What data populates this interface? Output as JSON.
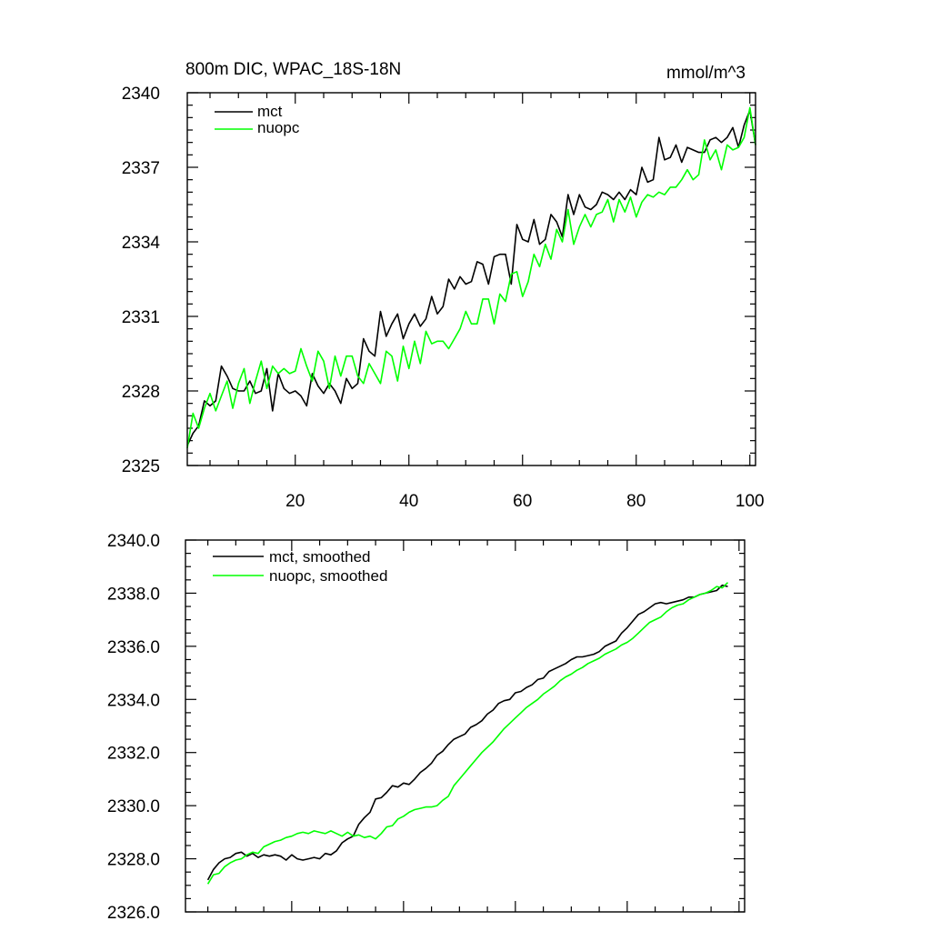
{
  "chart_data": [
    {
      "type": "line",
      "title": "800m DIC, WPAC_18S-18N",
      "units": "mmol/m^3",
      "xlabel": "",
      "ylabel": "",
      "xlim": [
        1,
        101
      ],
      "ylim": [
        2325,
        2340
      ],
      "yticks": [
        2325,
        2328,
        2331,
        2334,
        2337,
        2340
      ],
      "ytick_labels": [
        "2325",
        "2328",
        "2331",
        "2334",
        "2337",
        "2340"
      ],
      "xticks": [
        20,
        40,
        60,
        80,
        100
      ],
      "xtick_labels": [
        "20",
        "40",
        "60",
        "80",
        "100"
      ],
      "legend_position": "top-left",
      "series": [
        {
          "name": "mct",
          "color": "#000000",
          "x": [
            1,
            2,
            3,
            4,
            5,
            6,
            7,
            8,
            9,
            10,
            11,
            12,
            13,
            14,
            15,
            16,
            17,
            18,
            19,
            20,
            21,
            22,
            23,
            24,
            25,
            26,
            27,
            28,
            29,
            30,
            31,
            32,
            33,
            34,
            35,
            36,
            37,
            38,
            39,
            40,
            41,
            42,
            43,
            44,
            45,
            46,
            47,
            48,
            49,
            50,
            51,
            52,
            53,
            54,
            55,
            56,
            57,
            58,
            59,
            60,
            61,
            62,
            63,
            64,
            65,
            66,
            67,
            68,
            69,
            70,
            71,
            72,
            73,
            74,
            75,
            76,
            77,
            78,
            79,
            80,
            81,
            82,
            83,
            84,
            85,
            86,
            87,
            88,
            89,
            90,
            91,
            92,
            93,
            94,
            95,
            96,
            97,
            98,
            99,
            100,
            101
          ],
          "values": [
            2325.8,
            2326.3,
            2326.6,
            2327.6,
            2327.4,
            2327.6,
            2329.0,
            2328.6,
            2328.1,
            2328.0,
            2328.0,
            2328.4,
            2327.9,
            2328.0,
            2328.9,
            2327.2,
            2328.7,
            2328.1,
            2327.9,
            2328.0,
            2327.8,
            2327.4,
            2328.7,
            2328.2,
            2327.9,
            2328.3,
            2328.0,
            2327.5,
            2328.5,
            2328.1,
            2328.3,
            2330.1,
            2329.6,
            2329.4,
            2331.2,
            2330.2,
            2330.7,
            2331.1,
            2330.1,
            2330.7,
            2331.1,
            2330.6,
            2330.9,
            2331.8,
            2331.1,
            2331.4,
            2332.5,
            2332.1,
            2332.6,
            2332.3,
            2332.4,
            2333.2,
            2333.1,
            2332.3,
            2333.4,
            2333.5,
            2333.5,
            2332.3,
            2334.7,
            2334.1,
            2334.0,
            2334.9,
            2333.9,
            2334.1,
            2335.1,
            2334.8,
            2334.2,
            2335.9,
            2335.1,
            2335.9,
            2335.4,
            2335.3,
            2335.5,
            2336.0,
            2335.9,
            2335.7,
            2336.0,
            2335.7,
            2336.1,
            2335.9,
            2337.0,
            2336.4,
            2336.5,
            2338.2,
            2337.3,
            2337.4,
            2337.9,
            2337.2,
            2337.8,
            2337.7,
            2337.6,
            2337.6,
            2338.1,
            2338.2,
            2338.0,
            2338.2,
            2338.6,
            2337.8,
            2338.7,
            2339.3,
            2337.9
          ]
        },
        {
          "name": "nuopc",
          "color": "#00ff00",
          "x": [
            1,
            2,
            3,
            4,
            5,
            6,
            7,
            8,
            9,
            10,
            11,
            12,
            13,
            14,
            15,
            16,
            17,
            18,
            19,
            20,
            21,
            22,
            23,
            24,
            25,
            26,
            27,
            28,
            29,
            30,
            31,
            32,
            33,
            34,
            35,
            36,
            37,
            38,
            39,
            40,
            41,
            42,
            43,
            44,
            45,
            46,
            47,
            48,
            49,
            50,
            51,
            52,
            53,
            54,
            55,
            56,
            57,
            58,
            59,
            60,
            61,
            62,
            63,
            64,
            65,
            66,
            67,
            68,
            69,
            70,
            71,
            72,
            73,
            74,
            75,
            76,
            77,
            78,
            79,
            80,
            81,
            82,
            83,
            84,
            85,
            86,
            87,
            88,
            89,
            90,
            91,
            92,
            93,
            94,
            95,
            96,
            97,
            98,
            99,
            100,
            101
          ],
          "values": [
            2325.7,
            2327.1,
            2326.5,
            2327.3,
            2327.9,
            2327.2,
            2327.8,
            2328.4,
            2327.3,
            2328.3,
            2328.9,
            2327.5,
            2328.4,
            2329.2,
            2328.1,
            2329.0,
            2328.7,
            2328.9,
            2328.7,
            2328.8,
            2329.7,
            2329.0,
            2328.4,
            2329.6,
            2329.2,
            2328.1,
            2329.4,
            2328.6,
            2329.4,
            2329.4,
            2328.6,
            2328.3,
            2329.1,
            2328.7,
            2328.3,
            2329.6,
            2329.4,
            2328.4,
            2329.8,
            2328.9,
            2330.0,
            2329.1,
            2330.4,
            2329.9,
            2330.0,
            2330.0,
            2329.7,
            2330.1,
            2330.5,
            2331.2,
            2330.7,
            2330.7,
            2331.7,
            2331.7,
            2330.7,
            2331.9,
            2331.6,
            2332.7,
            2332.8,
            2331.8,
            2332.4,
            2333.5,
            2333.0,
            2333.9,
            2333.3,
            2334.5,
            2334.0,
            2335.3,
            2333.9,
            2334.6,
            2335.1,
            2334.6,
            2335.1,
            2335.2,
            2335.7,
            2334.8,
            2335.7,
            2335.2,
            2335.8,
            2335.0,
            2335.6,
            2335.9,
            2335.8,
            2336.0,
            2335.9,
            2336.2,
            2336.2,
            2336.5,
            2336.9,
            2336.5,
            2336.7,
            2338.1,
            2337.3,
            2337.7,
            2336.9,
            2337.9,
            2337.7,
            2337.8,
            2338.2,
            2339.4,
            2337.9
          ]
        }
      ]
    },
    {
      "type": "line",
      "title": "",
      "xlabel": "",
      "ylabel": "",
      "xlim": [
        1,
        101
      ],
      "ylim": [
        2326.0,
        2340.0
      ],
      "yticks": [
        2326,
        2328,
        2330,
        2332,
        2334,
        2336,
        2338,
        2340
      ],
      "ytick_labels": [
        "2326.0",
        "2328.0",
        "2330.0",
        "2332.0",
        "2334.0",
        "2336.0",
        "2338.0",
        "2340.0"
      ],
      "xticks": [
        20,
        40,
        60,
        80,
        100
      ],
      "legend_position": "top-left",
      "series": [
        {
          "name": "mct, smoothed",
          "color": "#000000",
          "x": [
            5,
            6,
            7,
            8,
            9,
            10,
            11,
            12,
            13,
            14,
            15,
            16,
            17,
            18,
            19,
            20,
            21,
            22,
            23,
            24,
            25,
            26,
            27,
            28,
            29,
            30,
            31,
            32,
            33,
            34,
            35,
            36,
            37,
            38,
            39,
            40,
            41,
            42,
            43,
            44,
            45,
            46,
            47,
            48,
            49,
            50,
            51,
            52,
            53,
            54,
            55,
            56,
            57,
            58,
            59,
            60,
            61,
            62,
            63,
            64,
            65,
            66,
            67,
            68,
            69,
            70,
            71,
            72,
            73,
            74,
            75,
            76,
            77,
            78,
            79,
            80,
            81,
            82,
            83,
            84,
            85,
            86,
            87,
            88,
            89,
            90,
            91,
            92,
            93,
            94,
            95,
            96,
            97,
            98
          ],
          "values": [
            2327.2,
            2327.6,
            2327.85,
            2328.0,
            2328.05,
            2328.2,
            2328.25,
            2328.1,
            2328.2,
            2328.05,
            2328.15,
            2328.1,
            2328.15,
            2328.1,
            2327.95,
            2328.15,
            2328.0,
            2327.95,
            2328.0,
            2328.05,
            2328.0,
            2328.2,
            2328.15,
            2328.3,
            2328.6,
            2328.75,
            2328.85,
            2329.3,
            2329.55,
            2329.75,
            2330.25,
            2330.3,
            2330.5,
            2330.75,
            2330.7,
            2330.85,
            2330.8,
            2331.0,
            2331.25,
            2331.4,
            2331.6,
            2331.9,
            2332.05,
            2332.3,
            2332.5,
            2332.6,
            2332.7,
            2332.95,
            2333.05,
            2333.2,
            2333.45,
            2333.6,
            2333.85,
            2333.95,
            2334.0,
            2334.25,
            2334.3,
            2334.45,
            2334.55,
            2334.75,
            2334.8,
            2335.05,
            2335.15,
            2335.25,
            2335.35,
            2335.5,
            2335.6,
            2335.6,
            2335.65,
            2335.7,
            2335.8,
            2336.0,
            2336.1,
            2336.2,
            2336.5,
            2336.7,
            2336.95,
            2337.2,
            2337.3,
            2337.45,
            2337.6,
            2337.65,
            2337.6,
            2337.65,
            2337.7,
            2337.75,
            2337.85,
            2337.85,
            2337.95,
            2338.0,
            2338.05,
            2338.1,
            2338.3,
            2338.25
          ]
        },
        {
          "name": "nuopc, smoothed",
          "color": "#00ff00",
          "x": [
            5,
            6,
            7,
            8,
            9,
            10,
            11,
            12,
            13,
            14,
            15,
            16,
            17,
            18,
            19,
            20,
            21,
            22,
            23,
            24,
            25,
            26,
            27,
            28,
            29,
            30,
            31,
            32,
            33,
            34,
            35,
            36,
            37,
            38,
            39,
            40,
            41,
            42,
            43,
            44,
            45,
            46,
            47,
            48,
            49,
            50,
            51,
            52,
            53,
            54,
            55,
            56,
            57,
            58,
            59,
            60,
            61,
            62,
            63,
            64,
            65,
            66,
            67,
            68,
            69,
            70,
            71,
            72,
            73,
            74,
            75,
            76,
            77,
            78,
            79,
            80,
            81,
            82,
            83,
            84,
            85,
            86,
            87,
            88,
            89,
            90,
            91,
            92,
            93,
            94,
            95,
            96,
            97,
            98
          ],
          "values": [
            2327.05,
            2327.4,
            2327.45,
            2327.7,
            2327.85,
            2327.95,
            2328.0,
            2328.15,
            2328.25,
            2328.2,
            2328.45,
            2328.55,
            2328.65,
            2328.7,
            2328.8,
            2328.85,
            2328.95,
            2329.0,
            2328.95,
            2329.05,
            2329.0,
            2328.95,
            2329.05,
            2328.95,
            2328.85,
            2329.0,
            2328.85,
            2328.9,
            2328.8,
            2328.85,
            2328.75,
            2328.95,
            2329.2,
            2329.25,
            2329.5,
            2329.6,
            2329.75,
            2329.85,
            2329.9,
            2329.95,
            2329.95,
            2330.0,
            2330.2,
            2330.35,
            2330.75,
            2331.0,
            2331.25,
            2331.5,
            2331.75,
            2332.0,
            2332.2,
            2332.4,
            2332.65,
            2332.9,
            2333.1,
            2333.3,
            2333.5,
            2333.7,
            2333.85,
            2334.0,
            2334.2,
            2334.35,
            2334.5,
            2334.7,
            2334.85,
            2334.95,
            2335.1,
            2335.2,
            2335.35,
            2335.45,
            2335.55,
            2335.7,
            2335.8,
            2335.9,
            2336.05,
            2336.15,
            2336.3,
            2336.5,
            2336.7,
            2336.9,
            2337.0,
            2337.1,
            2337.3,
            2337.45,
            2337.55,
            2337.6,
            2337.75,
            2337.85,
            2337.95,
            2338.0,
            2338.1,
            2338.25,
            2338.2,
            2338.4
          ]
        }
      ]
    }
  ]
}
